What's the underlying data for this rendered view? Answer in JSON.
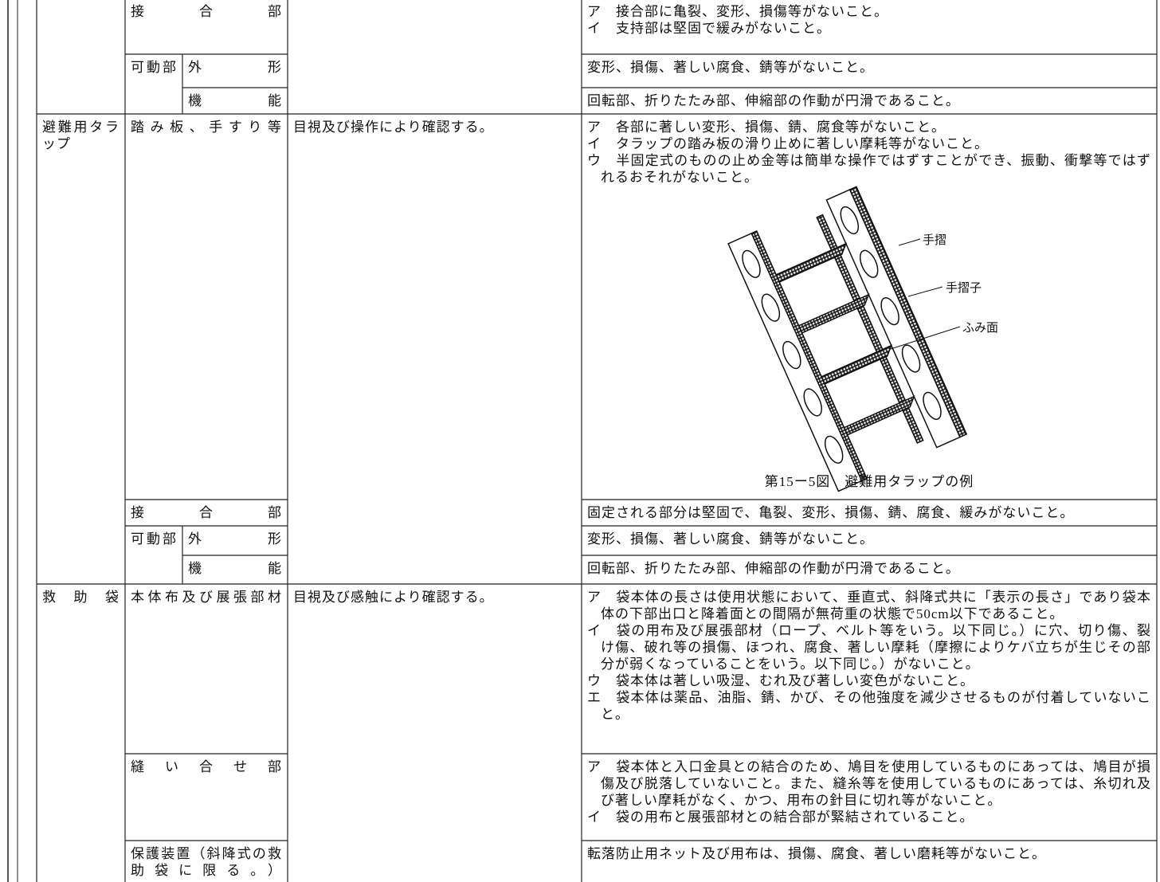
{
  "table": {
    "rows": [
      {
        "part": "接合部",
        "criteria": [
          "ア　接合部に亀裂、変形、損傷等がないこと。",
          "イ　支持部は堅固で緩みがないこと。"
        ]
      },
      {
        "part": "可動部",
        "sub": "外形",
        "criteria": [
          "変形、損傷、著しい腐食、錆等がないこと。"
        ]
      },
      {
        "sub": "機能",
        "criteria": [
          "回転部、折りたたみ部、伸縮部の作動が円滑であること。"
        ]
      },
      {
        "device": "避難用タラップ",
        "part": "踏み板、手すり等",
        "method": "目視及び操作により確認する。",
        "criteria": [
          "ア　各部に著しい変形、損傷、錆、腐食等がないこと。",
          "イ　タラップの踏み板の滑り止めに著しい摩耗等がないこと。",
          "ウ　半固定式のものの止め金等は簡単な操作ではずすことができ、振動、衝撃等ではずれるおそれがないこと。"
        ],
        "figure": {
          "labels": [
            "手摺",
            "手摺子",
            "ふみ面"
          ],
          "caption": "第15ー5図　避難用タラップの例"
        }
      },
      {
        "part": "接合部",
        "criteria": [
          "固定される部分は堅固で、亀裂、変形、損傷、錆、腐食、緩みがないこと。"
        ]
      },
      {
        "part": "可動部",
        "sub": "外形",
        "criteria": [
          "変形、損傷、著しい腐食、錆等がないこと。"
        ]
      },
      {
        "sub": "機能",
        "criteria": [
          "回転部、折りたたみ部、伸縮部の作動が円滑であること。"
        ]
      },
      {
        "device": "救助袋",
        "part": "本体布及び展張部材",
        "method": "目視及び感触により確認する。",
        "criteria": [
          "ア　袋本体の長さは使用状態において、垂直式、斜降式共に「表示の長さ」であり袋本体の下部出口と降着面との間隔が無荷重の状態で50cm以下であること。",
          "イ　袋の用布及び展張部材（ロープ、ベルト等をいう。以下同じ。）に穴、切り傷、裂け傷、破れ等の損傷、ほつれ、腐食、著しい摩耗（摩擦によりケバ立ちが生じその部分が弱くなっていることをいう。以下同じ。）がないこと。",
          "ウ　袋本体は著しい吸湿、むれ及び著しい変色がないこと。",
          "エ　袋本体は薬品、油脂、錆、かび、その他強度を減少させるものが付着していないこと。"
        ]
      },
      {
        "part": "縫い合せ部",
        "criteria": [
          "ア　袋本体と入口金具との結合のため、鳩目を使用しているものにあっては、鳩目が損傷及び脱落していないこと。また、縫糸等を使用しているものにあっては、糸切れ及び著しい摩耗がなく、かつ、用布の針目に切れ等がないこと。",
          "イ　袋の用布と展張部材との結合部が緊結されていること。"
        ]
      },
      {
        "part": "保護装置（斜降式の救助袋に限る。）",
        "criteria": [
          "転落防止用ネット及び用布は、損傷、腐食、著しい磨耗等がないこと。"
        ]
      }
    ]
  }
}
